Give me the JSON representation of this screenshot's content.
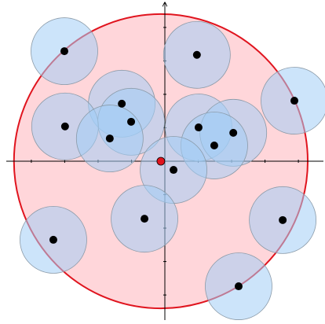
{
  "chart_data": {
    "type": "scatter",
    "x": [
      -3.01,
      0.96,
      3.88,
      -1.29,
      -1.01,
      -2.99,
      -1.65,
      1.01,
      2.05,
      1.48,
      0.26,
      -0.61,
      3.53,
      -3.34,
      2.21
    ],
    "y": [
      3.29,
      3.18,
      1.81,
      1.72,
      1.18,
      1.04,
      0.68,
      1.01,
      0.85,
      0.47,
      -0.26,
      -1.72,
      -1.76,
      -2.35,
      -3.74
    ],
    "color": "#000000",
    "circle_radius": 1,
    "circle_color": "#a3cdf5",
    "big_circle": {
      "center": [
        -0.12,
        0
      ],
      "radius": 4.4,
      "color": "#e0141e",
      "fill": "#ffd6da"
    },
    "xlim": [
      -4.75,
      4.75
    ],
    "ylim": [
      -4.75,
      4.75
    ],
    "xticks": [
      -4,
      -3,
      -2,
      -1,
      1,
      2,
      3,
      4
    ],
    "yticks": [
      -4,
      -3,
      -2,
      -1,
      1,
      2,
      3,
      4
    ]
  }
}
